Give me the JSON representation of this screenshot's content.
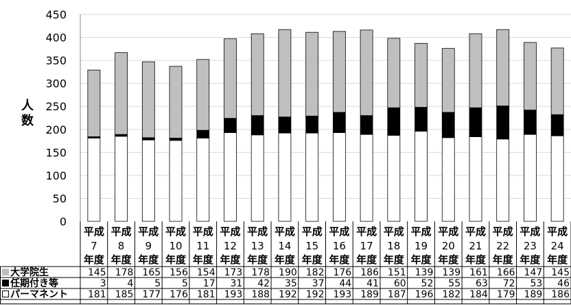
{
  "chart_data": {
    "type": "bar",
    "stacked": true,
    "ylabel": "人数",
    "xlabel": "",
    "title": "",
    "ylim": [
      0,
      450
    ],
    "ytick_step": 50,
    "grid": true,
    "legend_position": "data-table-left",
    "categories": [
      [
        "平成",
        "7",
        "年度"
      ],
      [
        "平成",
        "8",
        "年度"
      ],
      [
        "平成",
        "9",
        "年度"
      ],
      [
        "平成",
        "10",
        "年度"
      ],
      [
        "平成",
        "11",
        "年度"
      ],
      [
        "平成",
        "12",
        "年度"
      ],
      [
        "平成",
        "13",
        "年度"
      ],
      [
        "平成",
        "14",
        "年度"
      ],
      [
        "平成",
        "15",
        "年度"
      ],
      [
        "平成",
        "16",
        "年度"
      ],
      [
        "平成",
        "17",
        "年度"
      ],
      [
        "平成",
        "18",
        "年度"
      ],
      [
        "平成",
        "19",
        "年度"
      ],
      [
        "平成",
        "20",
        "年度"
      ],
      [
        "平成",
        "21",
        "年度"
      ],
      [
        "平成",
        "22",
        "年度"
      ],
      [
        "平成",
        "23",
        "年度"
      ],
      [
        "平成",
        "24",
        "年度"
      ]
    ],
    "series": [
      {
        "name": "大学院生",
        "marker": "■",
        "color": "#bfbfbf",
        "values": [
          145,
          178,
          165,
          156,
          154,
          173,
          178,
          190,
          182,
          176,
          186,
          151,
          139,
          139,
          161,
          166,
          147,
          145
        ]
      },
      {
        "name": "任期付き等",
        "marker": "■",
        "color": "#000000",
        "values": [
          3,
          4,
          5,
          5,
          17,
          31,
          42,
          35,
          37,
          44,
          41,
          60,
          52,
          55,
          63,
          72,
          53,
          46
        ]
      },
      {
        "name": "パーマネント",
        "marker": "□",
        "color": "#ffffff",
        "values": [
          181,
          185,
          177,
          176,
          181,
          193,
          188,
          192,
          192,
          193,
          189,
          187,
          196,
          182,
          184,
          179,
          189,
          186
        ]
      }
    ],
    "stack_order_bottom_to_top": [
      2,
      1,
      0
    ]
  }
}
